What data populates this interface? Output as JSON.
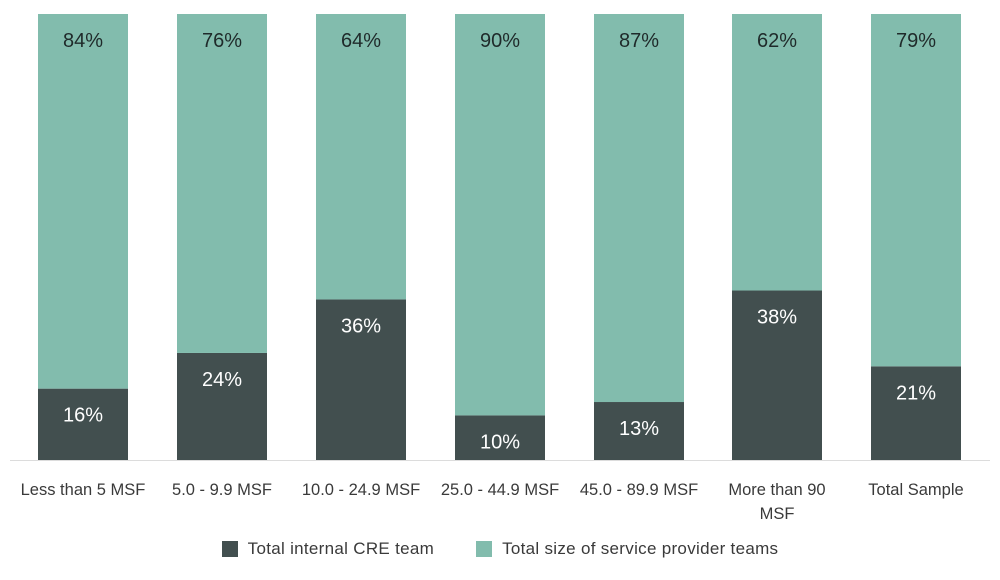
{
  "chart_data": {
    "type": "bar",
    "stacked": true,
    "categories": [
      "Less than 5 MSF",
      "5.0 - 9.9 MSF",
      "10.0 - 24.9 MSF",
      "25.0 - 44.9 MSF",
      "45.0 - 89.9 MSF",
      "More than 90 MSF",
      "Total Sample"
    ],
    "series": [
      {
        "name": "Total internal CRE team",
        "color": "#424f4f",
        "label_color": "#ffffff",
        "values": [
          16,
          24,
          36,
          10,
          13,
          38,
          21
        ],
        "labels": [
          "16%",
          "24%",
          "36%",
          "10%",
          "13%",
          "38%",
          "21%"
        ]
      },
      {
        "name": "Total size of service provider teams",
        "color": "#82bcad",
        "label_color": "#1f2a2a",
        "values": [
          84,
          76,
          64,
          90,
          87,
          62,
          79
        ],
        "labels": [
          "84%",
          "76%",
          "64%",
          "90%",
          "87%",
          "62%",
          "79%"
        ]
      }
    ],
    "ylim": [
      0,
      100
    ],
    "grid": false,
    "legend_position": "bottom"
  }
}
